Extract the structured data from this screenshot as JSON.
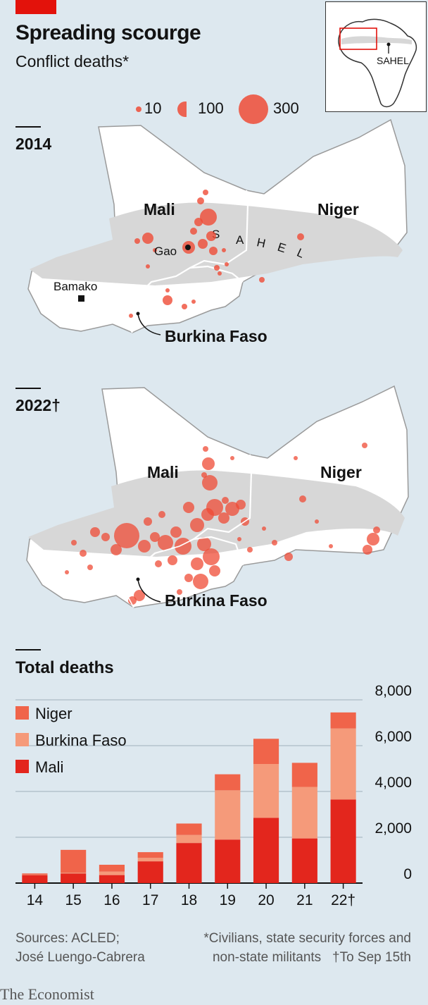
{
  "header": {
    "title": "Spreading scourge",
    "subtitle": "Conflict deaths*"
  },
  "size_legend": [
    {
      "label": "10",
      "deaths": 10
    },
    {
      "label": "100",
      "deaths": 100
    },
    {
      "label": "300",
      "deaths": 300
    }
  ],
  "inset": {
    "label": "SAHEL"
  },
  "map_2014": {
    "year_label": "2014",
    "countries": [
      "Mali",
      "Niger"
    ],
    "region_label": [
      "S",
      "A",
      "H",
      "E",
      "L"
    ],
    "city_gao": "Gao",
    "city_bamako": "Bamako",
    "burkina_label": "Burkina Faso"
  },
  "map_2022": {
    "year_label": "2022†",
    "countries": [
      "Mali",
      "Niger"
    ],
    "burkina_label": "Burkina Faso"
  },
  "colors": {
    "niger": "#f0644a",
    "burkina_faso": "#f59a7a",
    "mali": "#e3261d",
    "dot": "#ef4b36",
    "sahel_band": "#d7d7d7",
    "land": "#ffffff",
    "brand_red": "#e3120b"
  },
  "chart_data": {
    "type": "bar",
    "stacked": true,
    "title": "Total deaths",
    "categories": [
      "14",
      "15",
      "16",
      "17",
      "18",
      "19",
      "20",
      "21",
      "22†"
    ],
    "series": [
      {
        "name": "Mali",
        "values": [
          350,
          420,
          350,
          950,
          1750,
          1900,
          2850,
          1950,
          3650
        ]
      },
      {
        "name": "Burkina Faso",
        "values": [
          20,
          30,
          150,
          150,
          350,
          2150,
          2350,
          2250,
          3100
        ]
      },
      {
        "name": "Niger",
        "values": [
          50,
          1000,
          300,
          250,
          500,
          700,
          1100,
          1050,
          700
        ]
      }
    ],
    "legend": [
      "Niger",
      "Burkina Faso",
      "Mali"
    ],
    "yticks": [
      "0",
      "2,000",
      "4,000",
      "6,000",
      "8,000"
    ],
    "ytick_values": [
      0,
      2000,
      4000,
      6000,
      8000
    ],
    "ylim": [
      0,
      8000
    ],
    "grid": true,
    "yaxis_side": "right",
    "legend_position": "top-left"
  },
  "footer": {
    "sources_line1": "Sources: ACLED;",
    "sources_line2": "José Luengo-Cabrera",
    "note_line1": "*Civilians, state security forces and",
    "note_line2": "non-state militants",
    "note_line3": "†To Sep 15th",
    "brand": "The Economist"
  }
}
